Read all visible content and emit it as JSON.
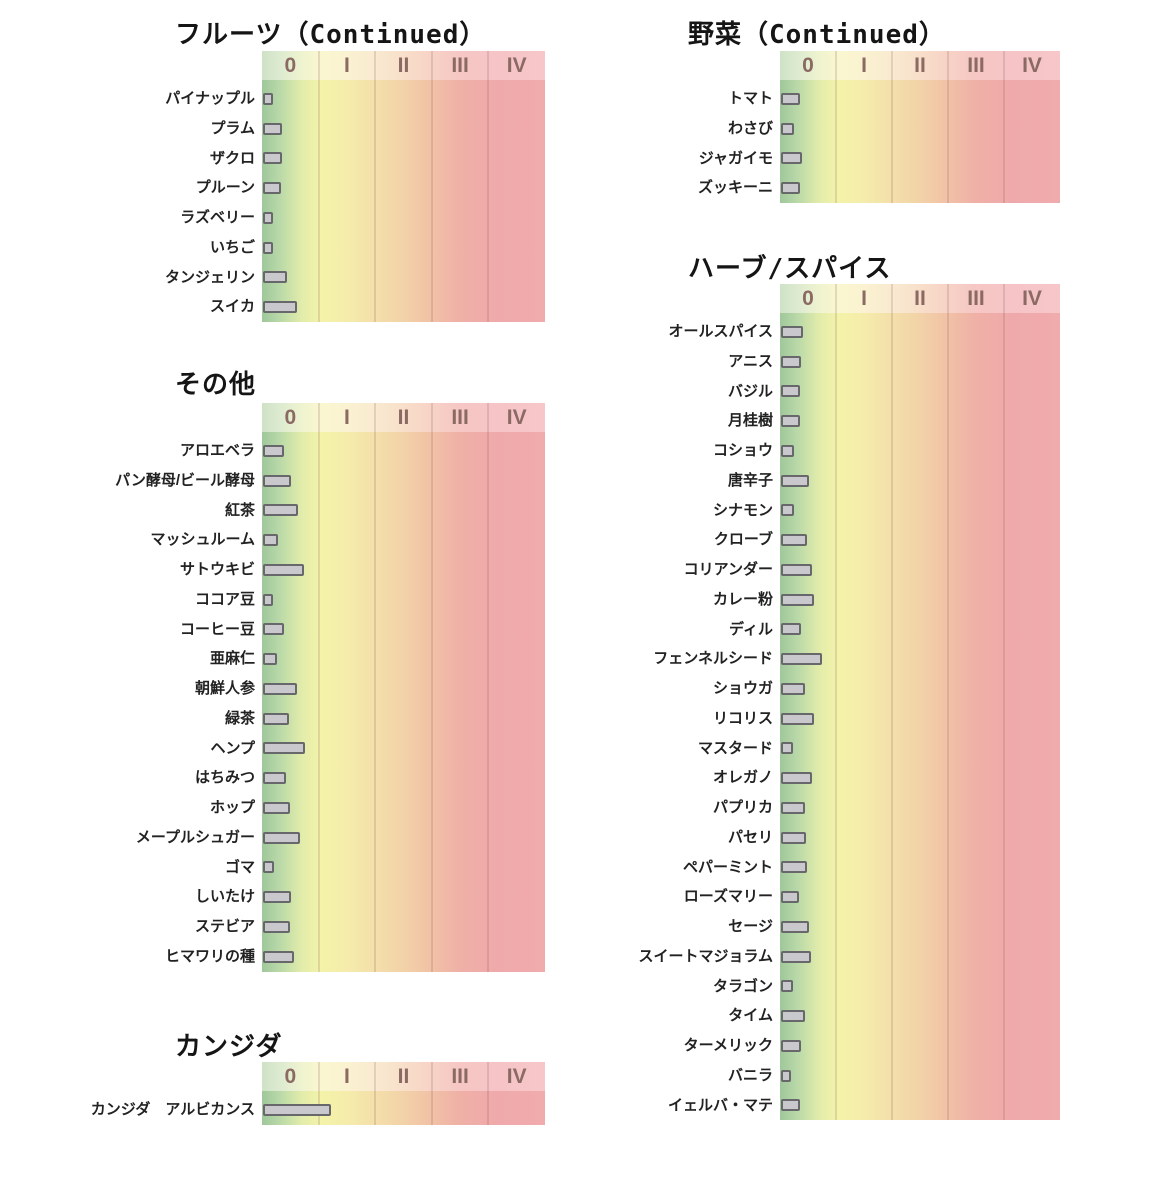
{
  "colors": {
    "background": "#ffffff",
    "bar_fill": "#c8c8cd",
    "bar_border": "#68686c",
    "tick_text": "#8b6a64",
    "gradient_left_green": "#9fc79b",
    "gradient_yellow": "#f4f3a9",
    "gradient_orange": "#f2d2a8",
    "gradient_right_pink": "#f0abad"
  },
  "scale_ticks": [
    "0",
    "I",
    "II",
    "III",
    "IV"
  ],
  "chart_data": [
    {
      "id": "fruits-continued",
      "type": "bar",
      "orientation": "horizontal",
      "title": "フルーツ（Continued）",
      "x_ticks": [
        "0",
        "I",
        "II",
        "III",
        "IV"
      ],
      "xlim": [
        0,
        5
      ],
      "grid": "band-separators",
      "legend": "none",
      "categories": [
        "パイナップル",
        "プラム",
        "ザクロ",
        "プルーン",
        "ラズベリー",
        "いちご",
        "タンジェリン",
        "スイカ"
      ],
      "values": [
        0.18,
        0.34,
        0.34,
        0.32,
        0.18,
        0.18,
        0.43,
        0.6
      ]
    },
    {
      "id": "vegetables-continued",
      "type": "bar",
      "orientation": "horizontal",
      "title": "野菜（Continued）",
      "x_ticks": [
        "0",
        "I",
        "II",
        "III",
        "IV"
      ],
      "xlim": [
        0,
        5
      ],
      "grid": "band-separators",
      "legend": "none",
      "categories": [
        "トマト",
        "わさび",
        "ジャガイモ",
        "ズッキーニ"
      ],
      "values": [
        0.34,
        0.23,
        0.38,
        0.34
      ]
    },
    {
      "id": "others",
      "type": "bar",
      "orientation": "horizontal",
      "title": "その他",
      "x_ticks": [
        "0",
        "I",
        "II",
        "III",
        "IV"
      ],
      "xlim": [
        0,
        5
      ],
      "grid": "band-separators",
      "legend": "none",
      "categories": [
        "アロエベラ",
        "パン酵母/ビール酵母",
        "紅茶",
        "マッシュルーム",
        "サトウキビ",
        "ココア豆",
        "コーヒー豆",
        "亜麻仁",
        "朝鮮人参",
        "緑茶",
        "ヘンプ",
        "はちみつ",
        "ホップ",
        "メープルシュガー",
        "ゴマ",
        "しいたけ",
        "ステビア",
        "ヒマワリの種"
      ],
      "values": [
        0.37,
        0.5,
        0.62,
        0.26,
        0.72,
        0.18,
        0.37,
        0.25,
        0.6,
        0.46,
        0.74,
        0.41,
        0.48,
        0.65,
        0.19,
        0.5,
        0.48,
        0.55
      ]
    },
    {
      "id": "candida",
      "type": "bar",
      "orientation": "horizontal",
      "title": "カンジダ",
      "x_ticks": [
        "0",
        "I",
        "II",
        "III",
        "IV"
      ],
      "xlim": [
        0,
        5
      ],
      "grid": "band-separators",
      "legend": "none",
      "categories": [
        "カンジダ　アルビカンス"
      ],
      "values": [
        1.2
      ]
    },
    {
      "id": "herbs-spices",
      "type": "bar",
      "orientation": "horizontal",
      "title": "ハーブ/スパイス",
      "x_ticks": [
        "0",
        "I",
        "II",
        "III",
        "IV"
      ],
      "xlim": [
        0,
        5
      ],
      "grid": "band-separators",
      "legend": "none",
      "categories": [
        "オールスパイス",
        "アニス",
        "バジル",
        "月桂樹",
        "コショウ",
        "唐辛子",
        "シナモン",
        "クローブ",
        "コリアンダー",
        "カレー粉",
        "ディル",
        "フェンネルシード",
        "ショウガ",
        "リコリス",
        "マスタード",
        "オレガノ",
        "パプリカ",
        "パセリ",
        "ペパーミント",
        "ローズマリー",
        "セージ",
        "スイートマジョラム",
        "タラゴン",
        "タイム",
        "ターメリック",
        "バニラ",
        "イェルバ・マテ"
      ],
      "values": [
        0.39,
        0.36,
        0.34,
        0.34,
        0.23,
        0.5,
        0.23,
        0.46,
        0.55,
        0.59,
        0.36,
        0.73,
        0.43,
        0.59,
        0.21,
        0.55,
        0.43,
        0.45,
        0.46,
        0.32,
        0.5,
        0.54,
        0.21,
        0.43,
        0.36,
        0.18,
        0.34
      ]
    }
  ]
}
